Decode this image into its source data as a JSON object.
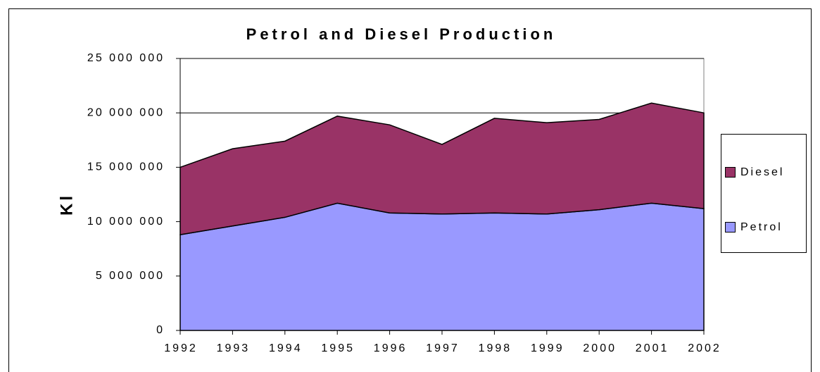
{
  "chart_data": {
    "type": "stacked_area",
    "title": "Petrol and Diesel Production",
    "y_label": "Kl",
    "categories": [
      "1992",
      "1993",
      "1994",
      "1995",
      "1996",
      "1997",
      "1998",
      "1999",
      "2000",
      "2001",
      "2002"
    ],
    "series": [
      {
        "name": "Petrol",
        "color": "#9999ff",
        "values": [
          8800000,
          9600000,
          10400000,
          11700000,
          10800000,
          10700000,
          10800000,
          10700000,
          11100000,
          11700000,
          11200000
        ]
      },
      {
        "name": "Diesel",
        "color": "#993366",
        "values": [
          6200000,
          7100000,
          7000000,
          8000000,
          8100000,
          6400000,
          8700000,
          8400000,
          8300000,
          9200000,
          8800000
        ]
      }
    ],
    "ylim": [
      0,
      25000000
    ],
    "yticks": [
      0,
      {
        "value": 5000000,
        "label": "5 000 000"
      },
      {
        "value": 10000000,
        "label": "10 000 000"
      },
      {
        "value": 15000000,
        "label": "15 000 000"
      },
      {
        "value": 20000000,
        "label": "20 000 000"
      },
      {
        "value": 25000000,
        "label": "25 000 000"
      }
    ],
    "grid": true,
    "legend_position": "right"
  }
}
